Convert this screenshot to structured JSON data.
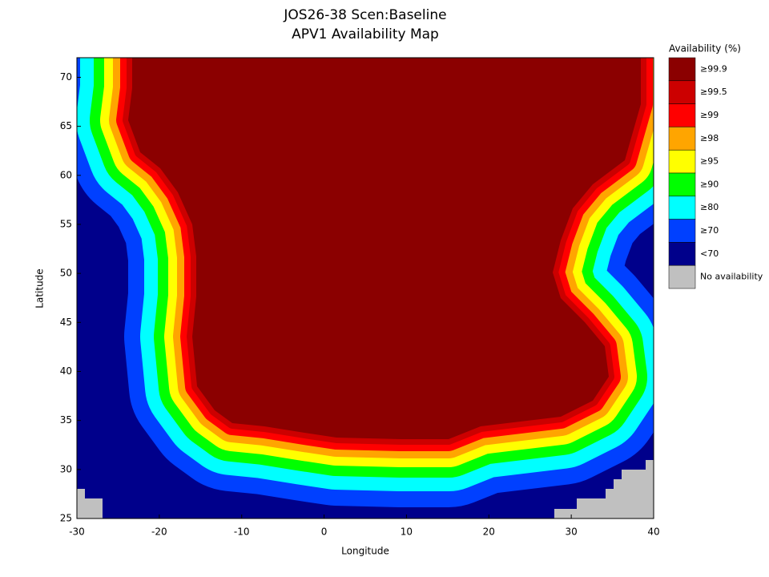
{
  "chart_data": {
    "type": "map",
    "title": "JOS26-38 Scen:Baseline",
    "subtitle": "APV1 Availability Map",
    "xlabel": "Longitude",
    "ylabel": "Latitude",
    "xlim": [
      -30,
      40
    ],
    "ylim": [
      25,
      72
    ],
    "xticks": [
      -30,
      -20,
      -10,
      0,
      10,
      20,
      30,
      40
    ],
    "yticks": [
      25,
      30,
      35,
      40,
      45,
      50,
      55,
      60,
      65,
      70
    ],
    "legend": {
      "title": "Availability (%)",
      "items": [
        {
          "label": "≥99.9",
          "color": "#8b0000"
        },
        {
          "label": "≥99.5",
          "color": "#cc0000"
        },
        {
          "label": "≥99",
          "color": "#ff0000"
        },
        {
          "label": "≥98",
          "color": "#ffa500"
        },
        {
          "label": "≥95",
          "color": "#ffff00"
        },
        {
          "label": "≥90",
          "color": "#00ff00"
        },
        {
          "label": "≥80",
          "color": "#00ffff"
        },
        {
          "label": "≥70",
          "color": "#0040ff"
        },
        {
          "label": "<70",
          "color": "#00008b"
        },
        {
          "label": "No availability",
          "color": "#c0c0c0"
        }
      ]
    }
  }
}
